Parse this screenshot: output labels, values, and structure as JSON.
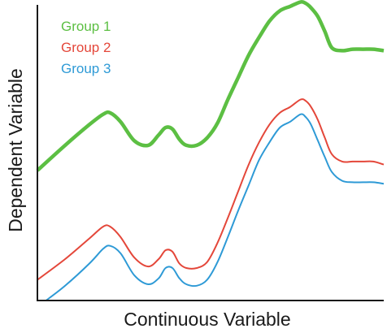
{
  "chart_data": {
    "type": "line",
    "xlabel": "Continuous Variable",
    "ylabel": "Dependent Variable",
    "xlim": [
      0,
      100
    ],
    "ylim": [
      0,
      100
    ],
    "ticks": "none",
    "grid": false,
    "legend": {
      "placement": "top-left"
    },
    "series": [
      {
        "name": "Group 1",
        "color": "#5cbf43",
        "x": [
          0,
          8,
          15,
          19,
          21,
          24,
          28,
          32,
          35,
          37,
          39,
          41,
          43,
          46,
          49,
          52,
          55,
          58,
          61,
          64,
          67,
          70,
          73,
          76,
          77.5,
          79,
          81,
          83,
          85,
          88,
          91,
          94,
          97,
          100
        ],
        "y": [
          44,
          52.5,
          59.5,
          63,
          63.5,
          60.5,
          54,
          52.5,
          56,
          58.5,
          58,
          54.5,
          52.5,
          52.5,
          55,
          60,
          68,
          75.5,
          83,
          89,
          94.5,
          98,
          99.5,
          101,
          100.5,
          99,
          96,
          91,
          85.5,
          84.5,
          85,
          85,
          85,
          84.5
        ]
      },
      {
        "name": "Group 2",
        "color": "#e4473a",
        "x": [
          0,
          8,
          15,
          19,
          21,
          24,
          28,
          32,
          35,
          37,
          39,
          41,
          43,
          46,
          49,
          52,
          55,
          58,
          61,
          64,
          67,
          70,
          73,
          76,
          77.5,
          79,
          81,
          83,
          85,
          88,
          91,
          94,
          97,
          100
        ],
        "y": [
          7,
          14,
          21,
          25,
          25,
          21.5,
          14.5,
          11.5,
          14,
          17,
          16.5,
          12.5,
          11,
          11,
          13,
          19.5,
          28,
          37,
          46,
          53.5,
          59.5,
          63.5,
          65.5,
          68,
          67.5,
          65.5,
          61,
          55,
          49.5,
          47,
          47,
          47,
          47,
          46
        ]
      },
      {
        "name": "Group 3",
        "color": "#2e9ad6",
        "x": [
          2.5,
          8,
          15,
          19,
          21,
          24,
          28,
          32,
          35,
          37,
          39,
          41,
          43,
          46,
          49,
          52,
          55,
          58,
          61,
          64,
          67,
          70,
          73,
          76,
          77.5,
          79,
          81,
          83,
          85,
          88,
          91,
          94,
          97,
          100
        ],
        "y": [
          0,
          5,
          12.5,
          17.5,
          18.5,
          16,
          8.5,
          5.5,
          7.5,
          11,
          11,
          7.5,
          5.5,
          5,
          7,
          13,
          21.5,
          30.5,
          39,
          47.5,
          53.5,
          58.5,
          60.5,
          63,
          62,
          59.5,
          54,
          48.5,
          43.5,
          40.5,
          40,
          40,
          40,
          39.5
        ]
      }
    ]
  }
}
